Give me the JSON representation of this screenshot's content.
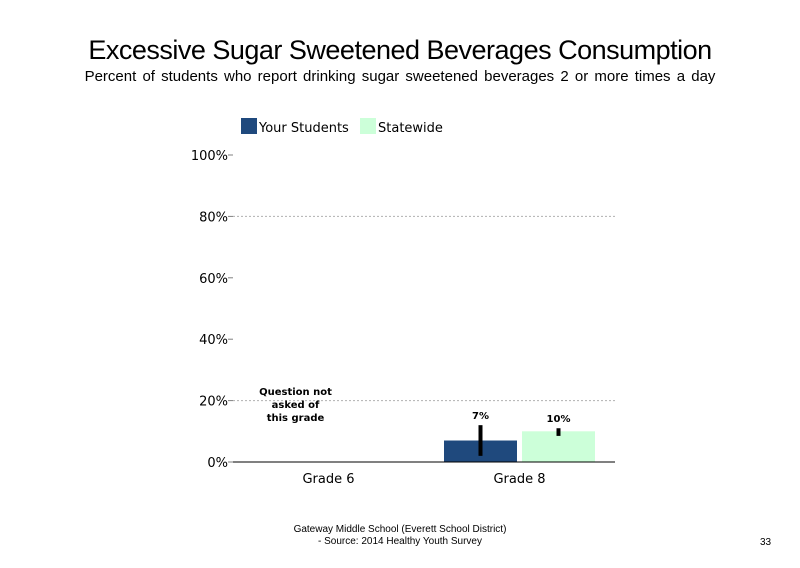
{
  "header": {
    "title": "Excessive Sugar Sweetened Beverages Consumption",
    "subtitle": "Percent of students who report drinking sugar sweetened beverages 2 or more times a day"
  },
  "footer": {
    "line1": "Gateway Middle School (Everett School District)",
    "line2": "- Source: 2014 Healthy Youth Survey",
    "page_number": "33"
  },
  "colors": {
    "your_students": "#1f497d",
    "statewide": "#ccffd9",
    "error_bar": "#000000",
    "grid": "#b0b0b0"
  },
  "chart_data": {
    "type": "bar",
    "categories": [
      "Grade 6",
      "Grade 8"
    ],
    "series": [
      {
        "name": "Your Students",
        "values": [
          null,
          7
        ],
        "labels": [
          "",
          "7%"
        ],
        "error_low": [
          null,
          2
        ],
        "error_high": [
          null,
          12
        ]
      },
      {
        "name": "Statewide",
        "values": [
          null,
          10
        ],
        "labels": [
          "",
          "10%"
        ],
        "error_low": [
          null,
          8.5
        ],
        "error_high": [
          null,
          11
        ]
      }
    ],
    "ylim": [
      0,
      100
    ],
    "yticks": [
      0,
      20,
      40,
      60,
      80,
      100
    ],
    "ytick_labels": [
      "0%",
      "20%",
      "40%",
      "60%",
      "80%",
      "100%"
    ],
    "grid_lines_at": [
      20,
      80
    ],
    "legend_position": "top",
    "annotations": [
      {
        "category": "Grade 6",
        "text_lines": [
          "Question not",
          "asked of",
          "this grade"
        ]
      }
    ]
  }
}
